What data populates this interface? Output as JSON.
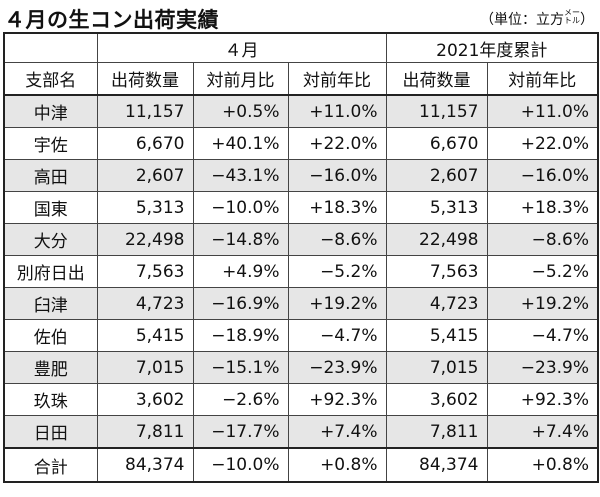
{
  "title": "４月の生コン出荷実績",
  "unit_prefix": "（単位：立方",
  "unit_top": "メー",
  "unit_bottom": "トル",
  "unit_suffix": "）",
  "header": {
    "group_month": "４月",
    "group_year": "2021年度累計",
    "col_branch": "支部名",
    "col_ship_m": "出荷数量",
    "col_mom": "対前月比",
    "col_yoy_m": "対前年比",
    "col_ship_y": "出荷数量",
    "col_yoy_y": "対前年比"
  },
  "rows": [
    {
      "name": "中津",
      "ship_m": "11,157",
      "mom": "+0.5%",
      "yoy_m": "+11.0%",
      "ship_y": "11,157",
      "yoy_y": "+11.0%"
    },
    {
      "name": "宇佐",
      "ship_m": "6,670",
      "mom": "+40.1%",
      "yoy_m": "+22.0%",
      "ship_y": "6,670",
      "yoy_y": "+22.0%"
    },
    {
      "name": "高田",
      "ship_m": "2,607",
      "mom": "−43.1%",
      "yoy_m": "−16.0%",
      "ship_y": "2,607",
      "yoy_y": "−16.0%"
    },
    {
      "name": "国東",
      "ship_m": "5,313",
      "mom": "−10.0%",
      "yoy_m": "+18.3%",
      "ship_y": "5,313",
      "yoy_y": "+18.3%"
    },
    {
      "name": "大分",
      "ship_m": "22,498",
      "mom": "−14.8%",
      "yoy_m": "−8.6%",
      "ship_y": "22,498",
      "yoy_y": "−8.6%"
    },
    {
      "name": "別府日出",
      "ship_m": "7,563",
      "mom": "+4.9%",
      "yoy_m": "−5.2%",
      "ship_y": "7,563",
      "yoy_y": "−5.2%"
    },
    {
      "name": "臼津",
      "ship_m": "4,723",
      "mom": "−16.9%",
      "yoy_m": "+19.2%",
      "ship_y": "4,723",
      "yoy_y": "+19.2%"
    },
    {
      "name": "佐伯",
      "ship_m": "5,415",
      "mom": "−18.9%",
      "yoy_m": "−4.7%",
      "ship_y": "5,415",
      "yoy_y": "−4.7%"
    },
    {
      "name": "豊肥",
      "ship_m": "7,015",
      "mom": "−15.1%",
      "yoy_m": "−23.9%",
      "ship_y": "7,015",
      "yoy_y": "−23.9%"
    },
    {
      "name": "玖珠",
      "ship_m": "3,602",
      "mom": "−2.6%",
      "yoy_m": "+92.3%",
      "ship_y": "3,602",
      "yoy_y": "+92.3%"
    },
    {
      "name": "日田",
      "ship_m": "7,811",
      "mom": "−17.7%",
      "yoy_m": "+7.4%",
      "ship_y": "7,811",
      "yoy_y": "+7.4%"
    }
  ],
  "total": {
    "name": "合計",
    "ship_m": "84,374",
    "mom": "−10.0%",
    "yoy_m": "+0.8%",
    "ship_y": "84,374",
    "yoy_y": "+0.8%"
  },
  "colors": {
    "shade": "#e6e6e6",
    "border": "#444444"
  }
}
